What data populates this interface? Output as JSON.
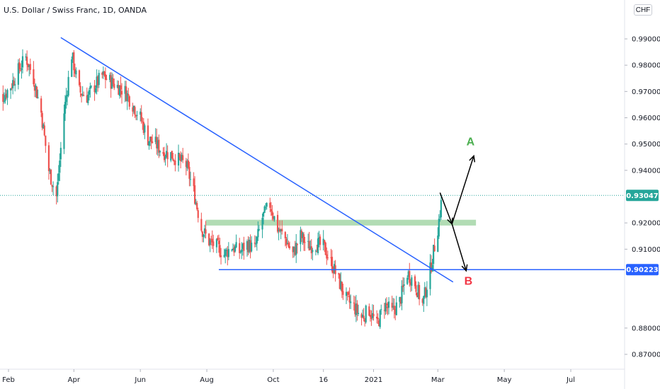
{
  "title": "U.S. Dollar / Swiss Franc, 1D, OANDA",
  "currency": "CHF",
  "colors": {
    "up": "#26a69a",
    "down": "#ef5350",
    "trendline": "#2962ff",
    "support_line": "#2962ff",
    "zone": "#a5d6a7",
    "label_a": "#4caf50",
    "label_b": "#f23645",
    "last_price_bg": "#26a69a",
    "support_price_bg": "#2962ff",
    "price_guide": "#26a69a",
    "arrows": "#000000"
  },
  "chart_data": {
    "type": "candlestick",
    "symbol": "USD/CHF",
    "timeframe": "1D",
    "ylim": [
      0.866,
      1.0
    ],
    "y_ticks": [
      "0.99000",
      "0.98000",
      "0.97000",
      "0.96000",
      "0.95000",
      "0.94000",
      "0.92000",
      "0.91000",
      "0.88000",
      "0.87000"
    ],
    "x_ticks": [
      {
        "label": "Feb",
        "date": "2020-02-01"
      },
      {
        "label": "Apr",
        "date": "2020-04-01"
      },
      {
        "label": "Jun",
        "date": "2020-06-01"
      },
      {
        "label": "Aug",
        "date": "2020-08-01"
      },
      {
        "label": "Oct",
        "date": "2020-10-01"
      },
      {
        "label": "16",
        "date": "2020-11-16"
      },
      {
        "label": "2021",
        "date": "2021-01-01"
      },
      {
        "label": "Mar",
        "date": "2021-03-01"
      },
      {
        "label": "May",
        "date": "2021-05-01"
      },
      {
        "label": "Jul",
        "date": "2021-07-01"
      }
    ],
    "close_series": [
      [
        "2020-01-20",
        0.969
      ],
      [
        "2020-01-27",
        0.968
      ],
      [
        "2020-02-03",
        0.972
      ],
      [
        "2020-02-10",
        0.978
      ],
      [
        "2020-02-17",
        0.983
      ],
      [
        "2020-02-24",
        0.975
      ],
      [
        "2020-03-02",
        0.962
      ],
      [
        "2020-03-09",
        0.94
      ],
      [
        "2020-03-16",
        0.93
      ],
      [
        "2020-03-23",
        0.962
      ],
      [
        "2020-03-30",
        0.984
      ],
      [
        "2020-04-06",
        0.97
      ],
      [
        "2020-04-13",
        0.968
      ],
      [
        "2020-04-20",
        0.972
      ],
      [
        "2020-04-27",
        0.976
      ],
      [
        "2020-05-04",
        0.974
      ],
      [
        "2020-05-11",
        0.972
      ],
      [
        "2020-05-18",
        0.97
      ],
      [
        "2020-05-25",
        0.965
      ],
      [
        "2020-06-01",
        0.96
      ],
      [
        "2020-06-08",
        0.952
      ],
      [
        "2020-06-15",
        0.95
      ],
      [
        "2020-06-22",
        0.947
      ],
      [
        "2020-06-29",
        0.946
      ],
      [
        "2020-07-06",
        0.944
      ],
      [
        "2020-07-13",
        0.942
      ],
      [
        "2020-07-20",
        0.932
      ],
      [
        "2020-07-27",
        0.918
      ],
      [
        "2020-08-03",
        0.913
      ],
      [
        "2020-08-10",
        0.911
      ],
      [
        "2020-08-17",
        0.908
      ],
      [
        "2020-08-24",
        0.911
      ],
      [
        "2020-08-31",
        0.909
      ],
      [
        "2020-09-07",
        0.912
      ],
      [
        "2020-09-14",
        0.91
      ],
      [
        "2020-09-21",
        0.922
      ],
      [
        "2020-09-28",
        0.927
      ],
      [
        "2020-10-05",
        0.918
      ],
      [
        "2020-10-12",
        0.914
      ],
      [
        "2020-10-19",
        0.908
      ],
      [
        "2020-10-26",
        0.915
      ],
      [
        "2020-11-02",
        0.911
      ],
      [
        "2020-11-09",
        0.912
      ],
      [
        "2020-11-16",
        0.911
      ],
      [
        "2020-11-23",
        0.905
      ],
      [
        "2020-11-30",
        0.898
      ],
      [
        "2020-12-07",
        0.891
      ],
      [
        "2020-12-14",
        0.888
      ],
      [
        "2020-12-21",
        0.884
      ],
      [
        "2020-12-28",
        0.887
      ],
      [
        "2021-01-04",
        0.881
      ],
      [
        "2021-01-11",
        0.889
      ],
      [
        "2021-01-18",
        0.886
      ],
      [
        "2021-01-25",
        0.89
      ],
      [
        "2021-02-01",
        0.901
      ],
      [
        "2021-02-08",
        0.897
      ],
      [
        "2021-02-15",
        0.889
      ],
      [
        "2021-02-22",
        0.902
      ],
      [
        "2021-03-01",
        0.918
      ],
      [
        "2021-03-05",
        0.93047
      ]
    ],
    "annotations": {
      "trendline": {
        "from": [
          "2020-03-20",
          0.9905
        ],
        "to": [
          "2021-03-15",
          0.8975
        ]
      },
      "resistance_zone": {
        "from": "2020-07-31",
        "to": "2021-04-05",
        "low": 0.919,
        "high": 0.9212
      },
      "support_line": {
        "from": "2020-08-12",
        "to": "2021-08-05",
        "price": 0.90223
      },
      "last_price": {
        "price": 0.93047,
        "label": "0.93047"
      },
      "support_price_label": {
        "price": 0.90223,
        "label": "0.90223"
      },
      "arrow_path": [
        [
          "2021-03-03",
          0.9315
        ],
        [
          "2021-03-14",
          0.9196
        ],
        [
          "2021-04-03",
          0.9455
        ]
      ],
      "arrow_b": {
        "from": [
          "2021-03-14",
          0.9196
        ],
        "to": [
          "2021-03-27",
          0.9018
        ]
      },
      "label_a": {
        "text": "A",
        "date": "2021-03-31",
        "price": 0.9495
      },
      "label_b": {
        "text": "B",
        "date": "2021-03-29",
        "price": 0.8965
      }
    }
  }
}
